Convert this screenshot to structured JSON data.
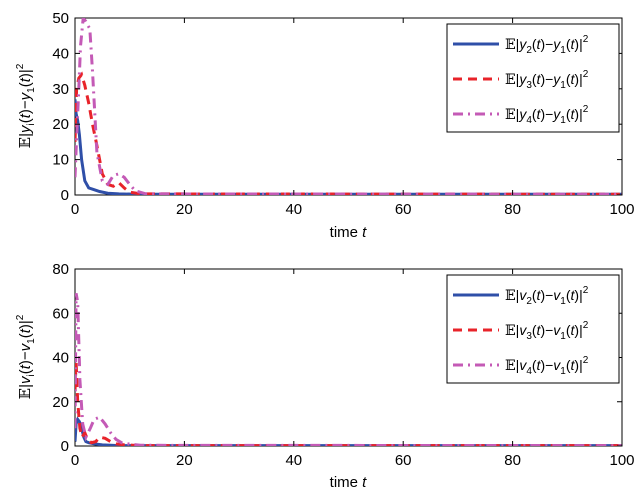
{
  "colors": {
    "series1": "#2f4fa8",
    "series2": "#e8232a",
    "series3": "#c45ab6",
    "axes": "#000000"
  },
  "chart_data": [
    {
      "type": "line",
      "xlabel": "time",
      "xlabel_var": "t",
      "ylabel": "E|y_i(t)−y_1(t)|²",
      "xlim": [
        0,
        100
      ],
      "ylim": [
        0,
        50
      ],
      "xticks": [
        "0",
        "20",
        "40",
        "60",
        "80",
        "100"
      ],
      "yticks": [
        "0",
        "10",
        "20",
        "30",
        "40",
        "50"
      ],
      "grid": false,
      "legend_position": "top-right",
      "series": [
        {
          "name": "E|y2(t)−y1(t)|²",
          "style": "solid",
          "color": "#2f4fa8",
          "x": [
            0,
            0.2,
            0.5,
            0.8,
            1.2,
            1.8,
            2.5,
            3.5,
            4.5,
            6,
            8,
            12,
            100
          ],
          "y": [
            27,
            23,
            21,
            17,
            10,
            4,
            2,
            1.5,
            1,
            0.5,
            0.3,
            0.2,
            0.2
          ]
        },
        {
          "name": "E|y3(t)−y1(t)|²",
          "style": "dashed",
          "color": "#e8232a",
          "x": [
            0,
            0.3,
            0.7,
            1.2,
            1.8,
            2.5,
            3.2,
            4,
            5,
            6,
            7,
            8,
            9,
            10,
            12,
            100
          ],
          "y": [
            15,
            30,
            33,
            34,
            31,
            26,
            20,
            14,
            6,
            3,
            2.5,
            3.5,
            2,
            0.8,
            0.3,
            0.2
          ]
        },
        {
          "name": "E|y4(t)−y1(t)|²",
          "style": "dashdot",
          "color": "#c45ab6",
          "x": [
            0,
            0.3,
            0.7,
            1,
            1.5,
            2,
            2.3,
            2.7,
            3.2,
            4,
            5,
            6,
            7,
            8,
            9,
            10,
            11,
            13,
            100
          ],
          "y": [
            5,
            16,
            30,
            42,
            50,
            49,
            48,
            47,
            35,
            12,
            4,
            3,
            5.5,
            6,
            5,
            3,
            1.2,
            0.3,
            0.2
          ]
        }
      ]
    },
    {
      "type": "line",
      "xlabel": "time",
      "xlabel_var": "t",
      "ylabel": "E|v_i(t)−v_1(t)|²",
      "xlim": [
        0,
        100
      ],
      "ylim": [
        0,
        80
      ],
      "xticks": [
        "0",
        "20",
        "40",
        "60",
        "80",
        "100"
      ],
      "yticks": [
        "0",
        "20",
        "40",
        "60",
        "80"
      ],
      "grid": false,
      "legend_position": "top-right",
      "series": [
        {
          "name": "E|v2(t)−v1(t)|²",
          "style": "solid",
          "color": "#2f4fa8",
          "x": [
            0,
            0.2,
            0.5,
            0.8,
            1.2,
            1.6,
            2,
            2.5,
            3.5,
            5,
            8,
            100
          ],
          "y": [
            2,
            10,
            12,
            11,
            8,
            4,
            2,
            1.5,
            1,
            0.5,
            0.2,
            0.2
          ]
        },
        {
          "name": "E|v3(t)−v1(t)|²",
          "style": "dashed",
          "color": "#e8232a",
          "x": [
            0,
            0.2,
            0.5,
            0.9,
            1.3,
            1.8,
            2.3,
            3,
            3.8,
            4.5,
            5.5,
            6.5,
            7.5,
            9,
            12,
            100
          ],
          "y": [
            25,
            38,
            20,
            8,
            4,
            6,
            3,
            1.5,
            2,
            4,
            3.5,
            2,
            1,
            0.5,
            0.2,
            0.2
          ]
        },
        {
          "name": "E|v4(t)−v1(t)|²",
          "style": "dashdot",
          "color": "#c45ab6",
          "x": [
            0,
            0.2,
            0.5,
            0.9,
            1.4,
            2,
            2.8,
            3.5,
            4.5,
            5.5,
            6.5,
            7.5,
            8.5,
            10,
            12,
            100
          ],
          "y": [
            8,
            69,
            65,
            30,
            10,
            4,
            8,
            12,
            13,
            10,
            6,
            3,
            1.5,
            0.8,
            0.3,
            0.2
          ]
        }
      ]
    }
  ]
}
